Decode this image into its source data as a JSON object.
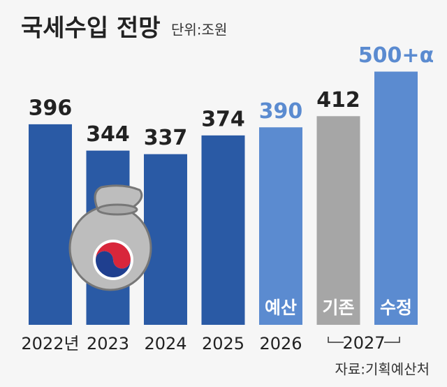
{
  "chart_data": {
    "type": "bar",
    "title": "국세수입 전망",
    "unit": "단위:조원",
    "categories": [
      "2022년",
      "2023",
      "2024",
      "2025",
      "2026",
      null,
      null
    ],
    "group_label": "2027",
    "values": [
      396,
      344,
      337,
      374,
      390,
      412,
      500
    ],
    "value_labels": [
      "396",
      "344",
      "337",
      "374",
      "390",
      "412",
      "500+α"
    ],
    "bar_labels": [
      null,
      null,
      null,
      null,
      "예산",
      "기존",
      "수정"
    ],
    "colors": [
      "#2a5aa5",
      "#2a5aa5",
      "#2a5aa5",
      "#2a5aa5",
      "#5b8bd0",
      "#a6a6a6",
      "#5b8bd0"
    ],
    "label_colors": [
      "#222222",
      "#222222",
      "#222222",
      "#222222",
      "#5b8bd0",
      "#222222",
      "#5b8bd0"
    ],
    "ylim": [
      0,
      640
    ],
    "source": "자료:기획예산처"
  }
}
